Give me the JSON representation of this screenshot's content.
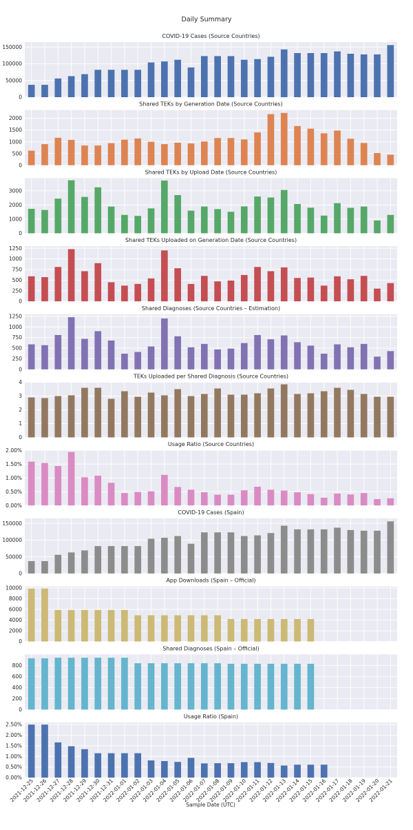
{
  "figure": {
    "title": "Daily Summary",
    "xlabel": "Sample Date (UTC)"
  },
  "chart_data": {
    "type": "bar",
    "dates": [
      "2021-12-25",
      "2021-12-26",
      "2021-12-27",
      "2021-12-28",
      "2021-12-29",
      "2021-12-30",
      "2021-12-31",
      "2022-01-01",
      "2022-01-02",
      "2022-01-03",
      "2022-01-04",
      "2022-01-05",
      "2022-01-06",
      "2022-01-07",
      "2022-01-08",
      "2022-01-09",
      "2022-01-10",
      "2022-01-11",
      "2022-01-12",
      "2022-01-13",
      "2022-01-14",
      "2022-01-15",
      "2022-01-16",
      "2022-01-17",
      "2022-01-18",
      "2022-01-19",
      "2022-01-20",
      "2022-01-21"
    ],
    "panels": [
      {
        "title": "COVID-19 Cases (Source Countries)",
        "color": "#4c72b0",
        "ylim": [
          0,
          165000
        ],
        "yticks": [
          0,
          50000,
          100000,
          150000
        ],
        "ytick_labels": [
          "0",
          "50000",
          "100000",
          "150000"
        ],
        "values": [
          37000,
          37000,
          56000,
          63000,
          69000,
          82000,
          82000,
          82000,
          82000,
          104000,
          107000,
          112000,
          89000,
          123000,
          123000,
          123000,
          112000,
          114000,
          121000,
          143000,
          132000,
          132000,
          132000,
          137000,
          130000,
          128000,
          128000,
          156000
        ]
      },
      {
        "title": "Shared TEKs by Generation Date (Source Countries)",
        "color": "#dd8452",
        "ylim": [
          0,
          2350
        ],
        "yticks": [
          0,
          500,
          1000,
          1500,
          2000
        ],
        "ytick_labels": [
          "0",
          "500",
          "1000",
          "1500",
          "2000"
        ],
        "values": [
          620,
          900,
          1170,
          1080,
          840,
          840,
          940,
          1090,
          1140,
          1000,
          900,
          960,
          930,
          1010,
          1160,
          1160,
          1100,
          1400,
          2180,
          2230,
          1670,
          1560,
          1360,
          1480,
          1130,
          950,
          520,
          450
        ]
      },
      {
        "title": "Shared TEKs by Upload Date (Source Countries)",
        "color": "#55a868",
        "ylim": [
          0,
          3900
        ],
        "yticks": [
          0,
          1000,
          2000,
          3000
        ],
        "ytick_labels": [
          "0",
          "1000",
          "2000",
          "3000"
        ],
        "values": [
          1730,
          1650,
          2450,
          3750,
          2570,
          3250,
          1890,
          1300,
          1230,
          1760,
          3730,
          2700,
          1600,
          1890,
          1710,
          1520,
          1900,
          2600,
          2530,
          3060,
          2070,
          1810,
          1250,
          2130,
          1800,
          1890,
          910,
          1300
        ]
      },
      {
        "title": "Shared TEKs Uploaded on Generation Date (Source Countries)",
        "color": "#c44e52",
        "ylim": [
          0,
          1300
        ],
        "yticks": [
          0,
          250,
          500,
          750,
          1000,
          1250
        ],
        "ytick_labels": [
          "0",
          "250",
          "500",
          "750",
          "1000",
          "1250"
        ],
        "values": [
          590,
          570,
          810,
          1230,
          710,
          900,
          450,
          370,
          410,
          540,
          1200,
          780,
          410,
          600,
          470,
          490,
          620,
          810,
          710,
          800,
          550,
          560,
          370,
          590,
          520,
          600,
          300,
          430
        ]
      },
      {
        "title": "Shared Diagnoses (Source Countries – Estimation)",
        "color": "#8172b3",
        "ylim": [
          0,
          1300
        ],
        "yticks": [
          0,
          250,
          500,
          750,
          1000,
          1250
        ],
        "ytick_labels": [
          "0",
          "250",
          "500",
          "750",
          "1000",
          "1250"
        ],
        "values": [
          590,
          570,
          810,
          1230,
          720,
          900,
          680,
          370,
          410,
          540,
          1200,
          780,
          520,
          600,
          470,
          490,
          620,
          810,
          710,
          800,
          640,
          560,
          370,
          590,
          520,
          600,
          300,
          430
        ]
      },
      {
        "title": "TEKs Uploaded per Shared Diagnosis (Source Countries)",
        "color": "#937860",
        "ylim": [
          0,
          4
        ],
        "yticks": [
          0,
          1,
          2,
          3,
          4
        ],
        "ytick_labels": [
          "0",
          "1",
          "2",
          "3",
          "4"
        ],
        "values": [
          2.9,
          2.85,
          3.0,
          3.05,
          3.6,
          3.6,
          2.8,
          3.35,
          2.95,
          3.25,
          3.05,
          3.5,
          3.0,
          3.15,
          3.55,
          3.1,
          3.1,
          3.2,
          3.55,
          3.85,
          3.15,
          3.2,
          3.35,
          3.6,
          3.45,
          3.15,
          2.95,
          2.95
        ]
      },
      {
        "title": "Usage Ratio (Source Countries)",
        "color": "#da8bc3",
        "ylim": [
          0,
          0.02
        ],
        "yticks": [
          0,
          0.005,
          0.01,
          0.015,
          0.02
        ],
        "ytick_labels": [
          "0.00%",
          "0.50%",
          "1.00%",
          "1.50%",
          "2.00%"
        ],
        "values": [
          0.0159,
          0.0154,
          0.0143,
          0.0194,
          0.0102,
          0.0108,
          0.0082,
          0.0045,
          0.0049,
          0.0051,
          0.0111,
          0.0067,
          0.0057,
          0.0048,
          0.0039,
          0.0039,
          0.0055,
          0.0068,
          0.0057,
          0.0054,
          0.0048,
          0.0041,
          0.0028,
          0.0043,
          0.004,
          0.0045,
          0.0023,
          0.0026
        ]
      },
      {
        "title": "COVID-19 Cases (Spain)",
        "color": "#8c8c8c",
        "ylim": [
          0,
          165000
        ],
        "yticks": [
          0,
          50000,
          100000,
          150000
        ],
        "ytick_labels": [
          "0",
          "50000",
          "100000",
          "150000"
        ],
        "values": [
          37000,
          37000,
          56000,
          63000,
          69000,
          82000,
          82000,
          82000,
          82000,
          104000,
          107000,
          112000,
          89000,
          123000,
          123000,
          123000,
          112000,
          114000,
          121000,
          143000,
          132000,
          132000,
          132000,
          137000,
          130000,
          128000,
          128000,
          156000
        ]
      },
      {
        "title": "App Downloads (Spain – Official)",
        "color": "#ccb974",
        "ylim": [
          0,
          10300
        ],
        "yticks": [
          0,
          2000,
          4000,
          6000,
          8000,
          10000
        ],
        "ytick_labels": [
          "0",
          "2000",
          "4000",
          "6000",
          "8000",
          "10000"
        ],
        "values": [
          9900,
          9900,
          5900,
          5900,
          5900,
          5900,
          5900,
          5900,
          4900,
          4900,
          4900,
          4900,
          4900,
          4900,
          4900,
          4200,
          4200,
          4200,
          4200,
          4200,
          4200,
          4200,
          null,
          null,
          null,
          null,
          null,
          null
        ]
      },
      {
        "title": "Shared Diagnoses (Spain – Official)",
        "color": "#64b5cd",
        "ylim": [
          0,
          1000
        ],
        "yticks": [
          0,
          200,
          400,
          600,
          800
        ],
        "ytick_labels": [
          "0",
          "200",
          "400",
          "600",
          "800"
        ],
        "values": [
          930,
          930,
          940,
          940,
          940,
          940,
          940,
          940,
          840,
          840,
          840,
          840,
          840,
          840,
          840,
          830,
          830,
          830,
          830,
          830,
          830,
          830,
          null,
          null,
          null,
          null,
          null,
          null
        ]
      },
      {
        "title": "Usage Ratio (Spain)",
        "color": "#4c72b0",
        "ylim": [
          0,
          0.026
        ],
        "yticks": [
          0,
          0.005,
          0.01,
          0.015,
          0.02,
          0.025
        ],
        "ytick_labels": [
          "0.00%",
          "0.50%",
          "1.00%",
          "1.50%",
          "2.00%",
          "2.50%"
        ],
        "values": [
          0.025,
          0.025,
          0.0166,
          0.0148,
          0.0134,
          0.0115,
          0.0115,
          0.0115,
          0.0115,
          0.0081,
          0.0078,
          0.0074,
          0.0093,
          0.0067,
          0.0068,
          0.0068,
          0.0073,
          0.0073,
          0.0069,
          0.0057,
          0.0061,
          0.0061,
          0.0061,
          null,
          null,
          null,
          null,
          null
        ]
      }
    ]
  }
}
